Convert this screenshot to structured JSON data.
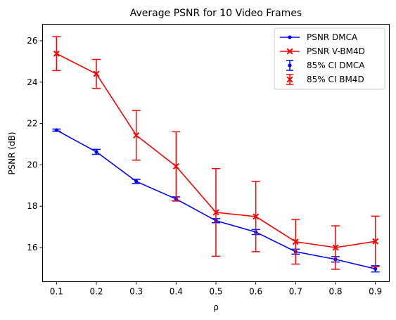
{
  "chart_data": {
    "type": "line",
    "title": "Average PSNR for 10 Video Frames",
    "xlabel": "ρ",
    "ylabel": "PSNR (dB)",
    "x": [
      0.1,
      0.2,
      0.3,
      0.4,
      0.5,
      0.6,
      0.7,
      0.8,
      0.9
    ],
    "x_ticks": [
      "0.1",
      "0.2",
      "0.3",
      "0.4",
      "0.5",
      "0.6",
      "0.7",
      "0.8",
      "0.9"
    ],
    "y_ticks": [
      "16",
      "18",
      "20",
      "22",
      "24",
      "26"
    ],
    "xlim": [
      0.065,
      0.935
    ],
    "ylim": [
      14.35,
      26.8
    ],
    "grid": false,
    "legend_position": "top-right",
    "series": [
      {
        "name": "PSNR DMCA",
        "ci_name": "85% CI DMCA",
        "color": "#0000ff",
        "marker": "dot",
        "values": [
          21.68,
          20.63,
          19.2,
          18.35,
          17.3,
          16.75,
          15.8,
          15.43,
          14.97
        ],
        "err": [
          0.05,
          0.12,
          0.1,
          0.1,
          0.1,
          0.12,
          0.12,
          0.13,
          0.15
        ]
      },
      {
        "name": "PSNR V-BM4D",
        "ci_name": "85% CI BM4D",
        "color": "#ff0000",
        "marker": "x",
        "values": [
          25.38,
          24.4,
          21.43,
          19.93,
          17.7,
          17.5,
          16.28,
          16.0,
          16.3
        ],
        "err": [
          0.82,
          0.7,
          1.2,
          1.67,
          2.12,
          1.7,
          1.08,
          1.05,
          1.22
        ]
      }
    ]
  }
}
